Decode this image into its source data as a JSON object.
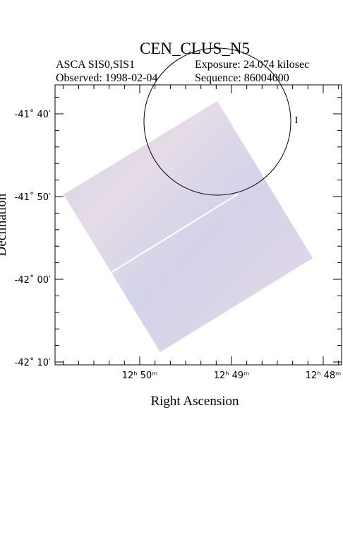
{
  "header": {
    "title": "CEN_CLUS_N5",
    "instrument": "ASCA SIS0,SIS1",
    "exposure": "Exposure: 24.074 kilosec",
    "observed": "Observed: 1998-02-04",
    "sequence": "Sequence: 86004000"
  },
  "axes": {
    "x": {
      "label": "Right Ascension",
      "ticks": [
        "12ʰ 50ᵐ",
        "12ʰ 49ᵐ",
        "12ʰ 48ᵐ"
      ]
    },
    "y": {
      "label": "Declination",
      "ticks": [
        "-41˚ 40′",
        "-41˚ 50′",
        "-42˚ 00′",
        "-42˚ 10′"
      ]
    }
  },
  "marker": {
    "label": "I"
  }
}
